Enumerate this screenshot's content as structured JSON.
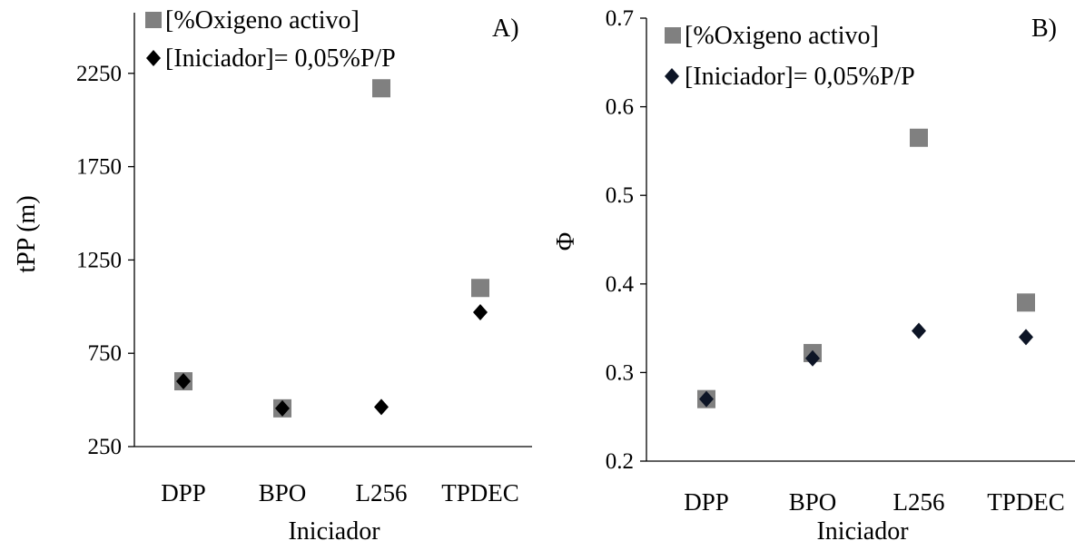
{
  "chart_data": [
    {
      "type": "scatter",
      "panel_label": "A)",
      "xlabel": "Iniciador",
      "ylabel": "tPP (m)",
      "categories": [
        "DPP",
        "BPO",
        "L256",
        "TPDEC"
      ],
      "yticks": [
        "250",
        "750",
        "1250",
        "1750",
        "2250"
      ],
      "ylim": [
        250,
        2600
      ],
      "legend_position": "top-left",
      "series": [
        {
          "name": "[%Oxigeno activo]",
          "marker": "square",
          "color": "#808080",
          "values": [
            600,
            455,
            2170,
            1100
          ]
        },
        {
          "name": "[Iniciador]= 0,05%P/P",
          "marker": "diamond",
          "color": "#000000",
          "values": [
            600,
            455,
            462,
            970
          ]
        }
      ]
    },
    {
      "type": "scatter",
      "panel_label": "B)",
      "xlabel": "Iniciador",
      "ylabel": "Φ",
      "categories": [
        "DPP",
        "BPO",
        "L256",
        "TPDEC"
      ],
      "yticks": [
        "0.2",
        "0.3",
        "0.4",
        "0.5",
        "0.6",
        "0.7"
      ],
      "ylim": [
        0.2,
        0.7
      ],
      "legend_position": "top-left",
      "series": [
        {
          "name": "[%Oxigeno activo]",
          "marker": "square",
          "color": "#808080",
          "values": [
            0.27,
            0.322,
            0.565,
            0.379
          ]
        },
        {
          "name": "[Iniciador]= 0,05%P/P",
          "marker": "diamond",
          "color": "#0d1526",
          "values": [
            0.27,
            0.316,
            0.347,
            0.34
          ]
        }
      ]
    }
  ]
}
